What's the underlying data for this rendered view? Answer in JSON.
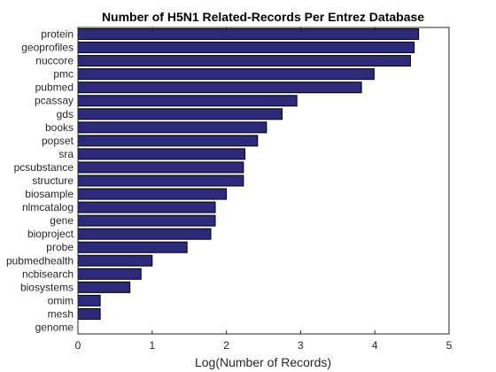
{
  "chart_data": {
    "type": "bar",
    "orientation": "horizontal",
    "title": "Number of H5N1 Related-Records Per Entrez Database",
    "xlabel": "Log(Number of Records)",
    "ylabel": "",
    "xlim": [
      0,
      5
    ],
    "x_ticks": [
      "0",
      "1",
      "2",
      "3",
      "4",
      "5"
    ],
    "grid": false,
    "bar_color": "#2E2A7A",
    "bar_edge_color": "#000000",
    "categories": [
      "protein",
      "geoprofiles",
      "nuccore",
      "pmc",
      "pubmed",
      "pcassay",
      "gds",
      "books",
      "popset",
      "sra",
      "pcsubstance",
      "structure",
      "biosample",
      "nlmcatalog",
      "gene",
      "bioproject",
      "probe",
      "pubmedhealth",
      "ncbisearch",
      "biosystems",
      "omim",
      "mesh",
      "genome"
    ],
    "values": [
      4.59,
      4.53,
      4.48,
      3.99,
      3.82,
      2.95,
      2.75,
      2.54,
      2.42,
      2.25,
      2.23,
      2.23,
      2.0,
      1.85,
      1.85,
      1.79,
      1.47,
      1.0,
      0.85,
      0.7,
      0.3,
      0.3,
      0
    ]
  }
}
